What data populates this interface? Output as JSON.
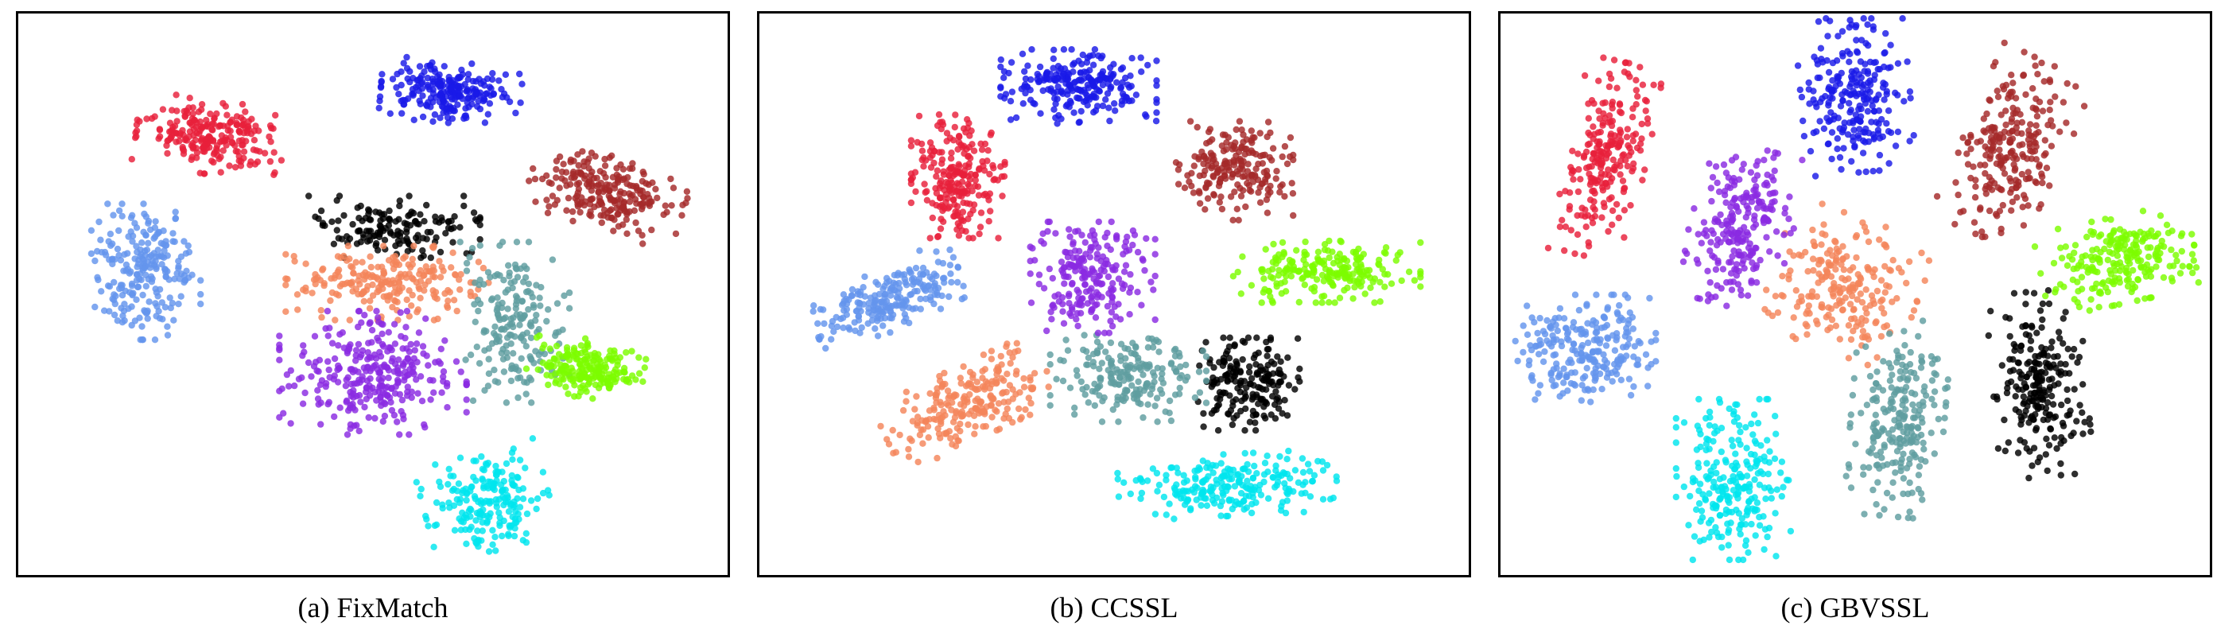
{
  "colors": {
    "class_1": "#e8203a",
    "class_2": "#1a1ae8",
    "class_3": "#a52a2a",
    "class_4": "#6495ed",
    "class_5": "#000000",
    "class_6": "#f4855a",
    "class_7": "#5f9ea0",
    "class_8": "#8a2be2",
    "class_9": "#7cfc00",
    "class_10": "#00e5ee"
  },
  "chart_data": [
    {
      "type": "scatter",
      "caption": "(a) FixMatch",
      "axes_visible": false,
      "grid": false,
      "legend": "none",
      "clusters": [
        {
          "class": "class_1",
          "center": [
            0.27,
            0.22
          ],
          "spread": [
            0.095,
            0.06
          ],
          "angle": 8,
          "n": 230
        },
        {
          "class": "class_2",
          "center": [
            0.61,
            0.14
          ],
          "spread": [
            0.09,
            0.05
          ],
          "angle": 5,
          "n": 230
        },
        {
          "class": "class_3",
          "center": [
            0.83,
            0.32
          ],
          "spread": [
            0.1,
            0.06
          ],
          "angle": 18,
          "n": 230
        },
        {
          "class": "class_4",
          "center": [
            0.18,
            0.46
          ],
          "spread": [
            0.07,
            0.11
          ],
          "angle": 0,
          "n": 230
        },
        {
          "class": "class_5",
          "center": [
            0.53,
            0.38
          ],
          "spread": [
            0.11,
            0.05
          ],
          "angle": 0,
          "n": 150
        },
        {
          "class": "class_6",
          "center": [
            0.52,
            0.48
          ],
          "spread": [
            0.13,
            0.06
          ],
          "angle": 0,
          "n": 220
        },
        {
          "class": "class_7",
          "center": [
            0.7,
            0.55
          ],
          "spread": [
            0.07,
            0.13
          ],
          "angle": 0,
          "n": 190
        },
        {
          "class": "class_8",
          "center": [
            0.5,
            0.64
          ],
          "spread": [
            0.12,
            0.1
          ],
          "angle": 0,
          "n": 300
        },
        {
          "class": "class_9",
          "center": [
            0.8,
            0.63
          ],
          "spread": [
            0.075,
            0.05
          ],
          "angle": 8,
          "n": 200
        },
        {
          "class": "class_10",
          "center": [
            0.66,
            0.87
          ],
          "spread": [
            0.08,
            0.08
          ],
          "angle": -15,
          "n": 200
        }
      ]
    },
    {
      "type": "scatter",
      "caption": "(b) CCSSL",
      "axes_visible": false,
      "grid": false,
      "legend": "none",
      "clusters": [
        {
          "class": "class_1",
          "center": [
            0.28,
            0.29
          ],
          "spread": [
            0.06,
            0.1
          ],
          "angle": 0,
          "n": 230
        },
        {
          "class": "class_2",
          "center": [
            0.45,
            0.13
          ],
          "spread": [
            0.1,
            0.06
          ],
          "angle": 0,
          "n": 240
        },
        {
          "class": "class_3",
          "center": [
            0.67,
            0.28
          ],
          "spread": [
            0.075,
            0.08
          ],
          "angle": 0,
          "n": 200
        },
        {
          "class": "class_4",
          "center": [
            0.18,
            0.51
          ],
          "spread": [
            0.1,
            0.05
          ],
          "angle": -25,
          "n": 220
        },
        {
          "class": "class_5",
          "center": [
            0.69,
            0.66
          ],
          "spread": [
            0.065,
            0.075
          ],
          "angle": 0,
          "n": 190
        },
        {
          "class": "class_6",
          "center": [
            0.3,
            0.69
          ],
          "spread": [
            0.12,
            0.06
          ],
          "angle": -25,
          "n": 230
        },
        {
          "class": "class_7",
          "center": [
            0.52,
            0.65
          ],
          "spread": [
            0.1,
            0.07
          ],
          "angle": 0,
          "n": 200
        },
        {
          "class": "class_8",
          "center": [
            0.47,
            0.47
          ],
          "spread": [
            0.08,
            0.09
          ],
          "angle": 0,
          "n": 220
        },
        {
          "class": "class_9",
          "center": [
            0.8,
            0.46
          ],
          "spread": [
            0.12,
            0.05
          ],
          "angle": 0,
          "n": 220
        },
        {
          "class": "class_10",
          "center": [
            0.66,
            0.84
          ],
          "spread": [
            0.14,
            0.05
          ],
          "angle": -3,
          "n": 230
        }
      ]
    },
    {
      "type": "scatter",
      "caption": "(c) GBVSSL",
      "axes_visible": false,
      "grid": false,
      "legend": "none",
      "clusters": [
        {
          "class": "class_1",
          "center": [
            0.15,
            0.26
          ],
          "spread": [
            0.05,
            0.16
          ],
          "angle": 12,
          "n": 230
        },
        {
          "class": "class_2",
          "center": [
            0.5,
            0.14
          ],
          "spread": [
            0.07,
            0.13
          ],
          "angle": -5,
          "n": 240
        },
        {
          "class": "class_3",
          "center": [
            0.72,
            0.24
          ],
          "spread": [
            0.065,
            0.15
          ],
          "angle": 25,
          "n": 240
        },
        {
          "class": "class_4",
          "center": [
            0.12,
            0.6
          ],
          "spread": [
            0.09,
            0.09
          ],
          "angle": 0,
          "n": 240
        },
        {
          "class": "class_5",
          "center": [
            0.76,
            0.66
          ],
          "spread": [
            0.06,
            0.15
          ],
          "angle": -5,
          "n": 230
        },
        {
          "class": "class_6",
          "center": [
            0.48,
            0.48
          ],
          "spread": [
            0.1,
            0.11
          ],
          "angle": 20,
          "n": 220
        },
        {
          "class": "class_7",
          "center": [
            0.56,
            0.72
          ],
          "spread": [
            0.06,
            0.16
          ],
          "angle": 5,
          "n": 230
        },
        {
          "class": "class_8",
          "center": [
            0.34,
            0.38
          ],
          "spread": [
            0.065,
            0.13
          ],
          "angle": 15,
          "n": 230
        },
        {
          "class": "class_9",
          "center": [
            0.87,
            0.44
          ],
          "spread": [
            0.1,
            0.07
          ],
          "angle": -12,
          "n": 230
        },
        {
          "class": "class_10",
          "center": [
            0.33,
            0.83
          ],
          "spread": [
            0.075,
            0.13
          ],
          "angle": 0,
          "n": 240
        }
      ]
    }
  ]
}
